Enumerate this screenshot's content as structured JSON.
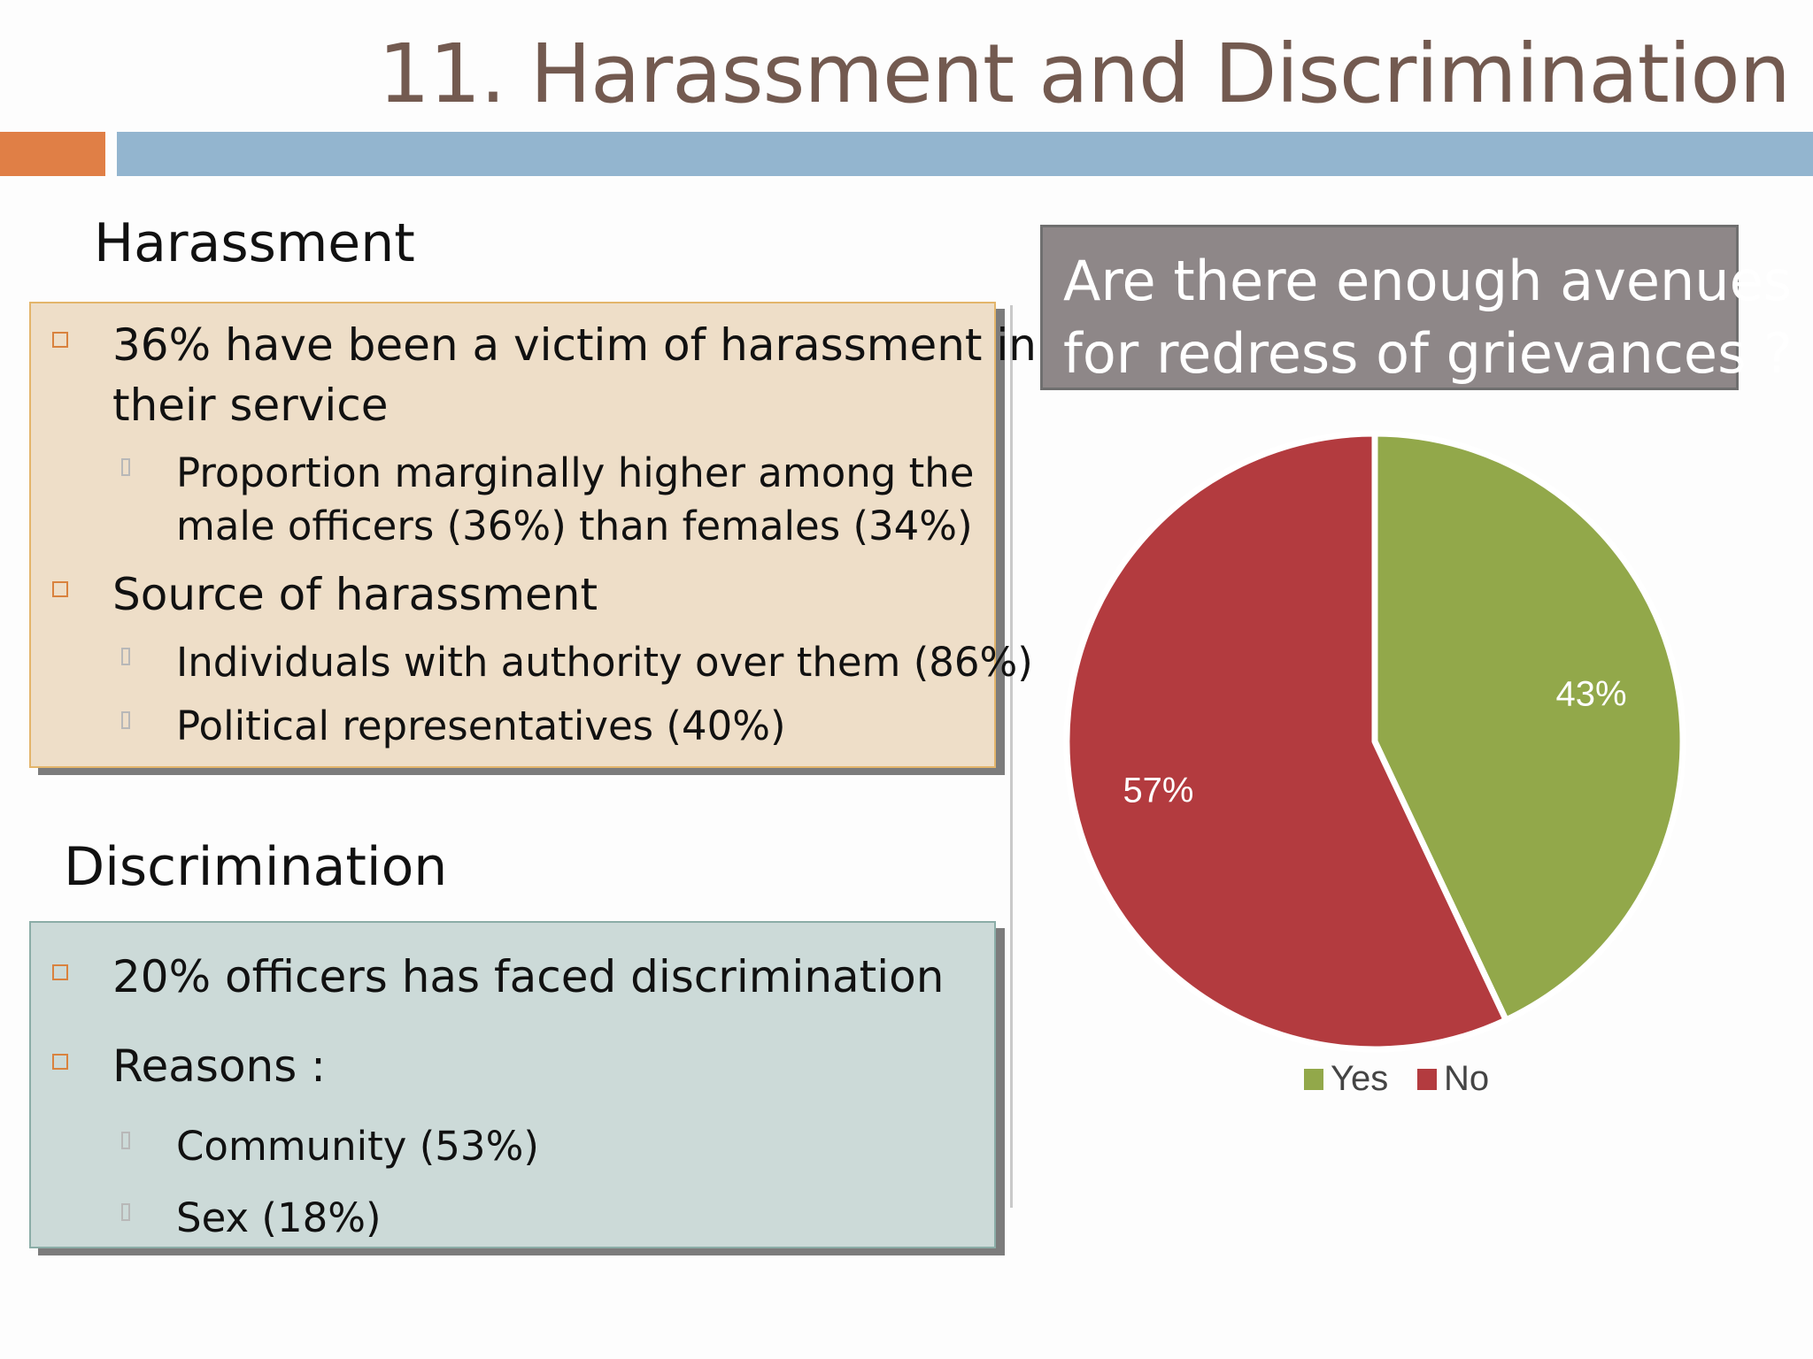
{
  "title": "11. Harassment and Discrimination",
  "colors": {
    "accent_orange": "#e07f46",
    "accent_blue": "#93b5cf",
    "yes": "#92a84a",
    "no": "#b33b3f"
  },
  "harassment": {
    "heading": "Harassment",
    "bullet1_line1": "36% have been a victim of harassment in",
    "bullet1_line2": "their service",
    "sub1_line1": "Proportion marginally higher among the",
    "sub1_line2": "male officers (36%) than females (34%)",
    "bullet2": "Source of harassment",
    "sub2": "Individuals with authority over them (86%)",
    "sub3": "Political representatives (40%)"
  },
  "discrimination": {
    "heading": "Discrimination",
    "bullet1": "20% officers has faced discrimination",
    "bullet2": "Reasons :",
    "sub1": "Community (53%)",
    "sub2": "Sex (18%)"
  },
  "question": {
    "line1": "Are there enough avenues",
    "line2": "for redress of grievances ?"
  },
  "chart_data": {
    "type": "pie",
    "title": "",
    "categories": [
      "Yes",
      "No"
    ],
    "values": [
      43,
      57
    ],
    "data_labels": [
      "43%",
      "57%"
    ],
    "colors": [
      "#92a84a",
      "#b33b3f"
    ],
    "legend": {
      "position": "bottom",
      "entries": [
        "Yes",
        "No"
      ]
    }
  }
}
